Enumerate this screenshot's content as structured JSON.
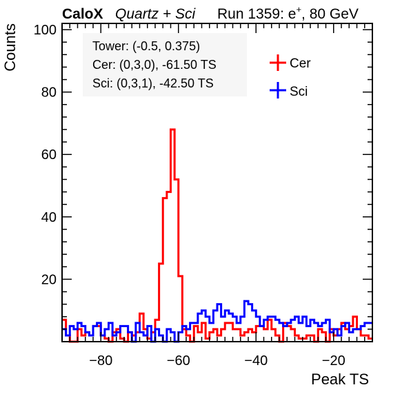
{
  "header": {
    "brand": "CaloX",
    "detector": "Quartz + Sci",
    "run": "Run 1359: e",
    "particle_sup": "+",
    "energy": ", 80 GeV"
  },
  "info_box": {
    "line1": "Tower: (-0.5, 0.375)",
    "line2": "Cer: (0,3,0), -61.50 TS",
    "line3": "Sci: (0,3,1), -42.50 TS"
  },
  "colors": {
    "cer": "#ff0000",
    "sci": "#0000ff"
  },
  "chart_data": {
    "type": "line",
    "title": "",
    "xlabel": "Peak TS",
    "ylabel": "Counts",
    "xlim": [
      -90,
      -10
    ],
    "ylim": [
      0,
      102
    ],
    "bin_width": 1,
    "x_ticks": [
      -80,
      -60,
      -40,
      -20
    ],
    "x_tick_labels": [
      "−80",
      "−60",
      "−40",
      "−20"
    ],
    "y_ticks": [
      20,
      40,
      60,
      80,
      100
    ],
    "y_tick_labels": [
      "20",
      "40",
      "60",
      "80",
      "100"
    ],
    "grid": false,
    "legend_position": "top-right",
    "series": [
      {
        "name": "Cer",
        "color": "#ff0000",
        "bin_low_edges": [
          -90,
          -89,
          -88,
          -87,
          -86,
          -85,
          -84,
          -83,
          -82,
          -81,
          -80,
          -79,
          -78,
          -77,
          -76,
          -75,
          -74,
          -73,
          -72,
          -71,
          -70,
          -69,
          -68,
          -67,
          -66,
          -65,
          -64,
          -63,
          -62,
          -61,
          -60,
          -59,
          -58,
          -57,
          -56,
          -55,
          -54,
          -53,
          -52,
          -51,
          -50,
          -49,
          -48,
          -47,
          -46,
          -45,
          -44,
          -43,
          -42,
          -41,
          -40,
          -39,
          -38,
          -37,
          -36,
          -35,
          -34,
          -33,
          -32,
          -31,
          -30,
          -29,
          -28,
          -27,
          -26,
          -25,
          -24,
          -23,
          -22,
          -21,
          -20,
          -19,
          -18,
          -17,
          -16,
          -15,
          -14,
          -13,
          -12,
          -11
        ],
        "counts": [
          7,
          2,
          0,
          0,
          4,
          2,
          3,
          2,
          5,
          5,
          2,
          1,
          0,
          3,
          4,
          1,
          0,
          3,
          2,
          3,
          9,
          4,
          1,
          3,
          7,
          25,
          46,
          48,
          68,
          52,
          21,
          4,
          2,
          0,
          5,
          3,
          6,
          1,
          3,
          4,
          2,
          4,
          6,
          6,
          4,
          4,
          2,
          3,
          4,
          3,
          5,
          5,
          4,
          7,
          4,
          2,
          0,
          6,
          5,
          4,
          2,
          1,
          1,
          2,
          2,
          0,
          4,
          3,
          0,
          4,
          2,
          4,
          6,
          4,
          5,
          8,
          4,
          2,
          2,
          1
        ]
      },
      {
        "name": "Sci",
        "color": "#0000ff",
        "bin_low_edges": [
          -90,
          -89,
          -88,
          -87,
          -86,
          -85,
          -84,
          -83,
          -82,
          -81,
          -80,
          -79,
          -78,
          -77,
          -76,
          -75,
          -74,
          -73,
          -72,
          -71,
          -70,
          -69,
          -68,
          -67,
          -66,
          -65,
          -64,
          -63,
          -62,
          -61,
          -60,
          -59,
          -58,
          -57,
          -56,
          -55,
          -54,
          -53,
          -52,
          -51,
          -50,
          -49,
          -48,
          -47,
          -46,
          -45,
          -44,
          -43,
          -42,
          -41,
          -40,
          -39,
          -38,
          -37,
          -36,
          -35,
          -34,
          -33,
          -32,
          -31,
          -30,
          -29,
          -28,
          -27,
          -26,
          -25,
          -24,
          -23,
          -22,
          -21,
          -20,
          -19,
          -18,
          -17,
          -16,
          -15,
          -14,
          -13,
          -12,
          -11
        ],
        "counts": [
          4,
          2,
          5,
          4,
          6,
          5,
          3,
          2,
          5,
          6,
          2,
          4,
          6,
          2,
          3,
          5,
          5,
          3,
          0,
          6,
          3,
          2,
          5,
          0,
          4,
          2,
          0,
          4,
          3,
          0,
          3,
          5,
          4,
          6,
          6,
          9,
          10,
          8,
          6,
          10,
          12,
          8,
          10,
          9,
          8,
          6,
          8,
          13,
          12,
          10,
          8,
          5,
          7,
          8,
          8,
          7,
          6,
          5,
          6,
          7,
          8,
          6,
          8,
          5,
          7,
          6,
          5,
          6,
          7,
          3,
          4,
          2,
          5,
          6,
          3,
          4,
          4,
          5,
          6,
          6
        ]
      }
    ]
  }
}
